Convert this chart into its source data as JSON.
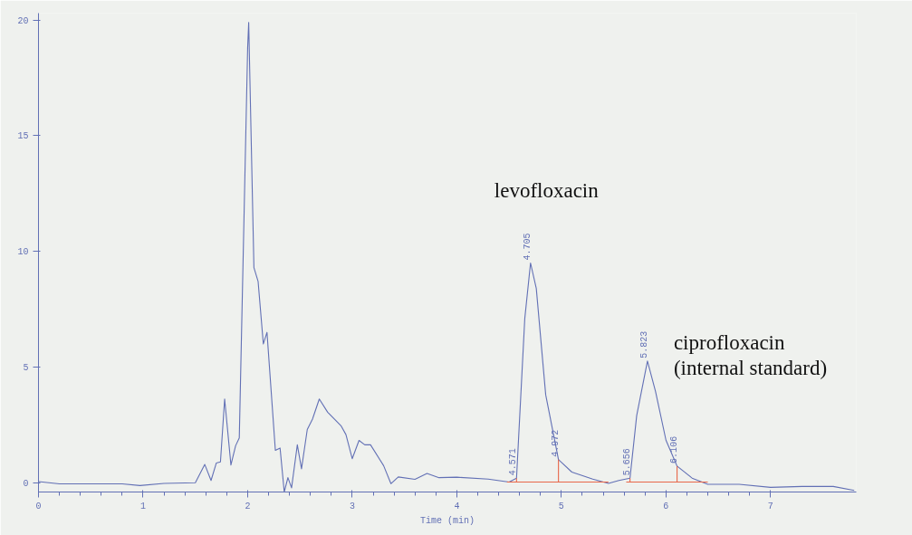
{
  "chart_data": {
    "type": "line",
    "xlabel": "Time (min)",
    "xlim": [
      0,
      7.82
    ],
    "ylim": [
      -0.4,
      20.3
    ],
    "xticks": [
      0,
      1,
      2,
      3,
      4,
      5,
      6,
      7
    ],
    "yticks": [
      0,
      5,
      10,
      15,
      20
    ],
    "grid": false,
    "marker": "none",
    "line_style": "solid",
    "series": [
      {
        "color": "#6270b5",
        "x": [
          0,
          0.2,
          0.5,
          0.8,
          0.97,
          1.2,
          1.5,
          1.59,
          1.65,
          1.7,
          1.74,
          1.78,
          1.84,
          1.885,
          1.92,
          2.0,
          2.01,
          2.06,
          2.1,
          2.15,
          2.185,
          2.265,
          2.31,
          2.35,
          2.385,
          2.42,
          2.475,
          2.515,
          2.57,
          2.62,
          2.685,
          2.765,
          2.895,
          2.94,
          3.0,
          3.065,
          3.12,
          3.175,
          3.3,
          3.37,
          3.44,
          3.6,
          3.715,
          3.83,
          4.0,
          4.3,
          4.5,
          4.571,
          4.65,
          4.705,
          4.76,
          4.85,
          4.972,
          5.1,
          5.3,
          5.45,
          5.55,
          5.656,
          5.72,
          5.823,
          5.9,
          6.0,
          6.106,
          6.25,
          6.4,
          6.7,
          7.0,
          7.3,
          7.6,
          7.8
        ],
        "values": [
          0.05,
          -0.05,
          -0.05,
          -0.05,
          -0.12,
          -0.03,
          0.0,
          0.79,
          0.1,
          0.85,
          0.9,
          3.62,
          0.77,
          1.6,
          1.94,
          18.8,
          19.9,
          9.3,
          8.7,
          6.0,
          6.5,
          1.4,
          1.5,
          -0.4,
          0.22,
          -0.22,
          1.64,
          0.6,
          2.3,
          2.75,
          3.62,
          3.05,
          2.45,
          2.08,
          1.04,
          1.83,
          1.64,
          1.64,
          0.74,
          -0.04,
          0.25,
          0.15,
          0.4,
          0.22,
          0.24,
          0.16,
          0.03,
          0.2,
          7.1,
          9.5,
          8.4,
          3.8,
          1.0,
          0.46,
          0.16,
          -0.03,
          0.1,
          0.2,
          2.9,
          5.26,
          3.95,
          1.84,
          0.72,
          0.2,
          -0.07,
          -0.07,
          -0.2,
          -0.16,
          -0.16,
          -0.33
        ]
      },
      {
        "color": "#e8674a",
        "x": [
          4.48,
          5.45
        ],
        "values": [
          0.03,
          0.03
        ]
      },
      {
        "color": "#e8674a",
        "x": [
          5.62,
          6.4
        ],
        "values": [
          0.03,
          0.03
        ]
      },
      {
        "color": "#e8674a",
        "x": [
          4.571,
          4.571
        ],
        "values": [
          0.03,
          0.2
        ]
      },
      {
        "color": "#e8674a",
        "x": [
          4.972,
          4.972
        ],
        "values": [
          0.03,
          1.0
        ]
      },
      {
        "color": "#e8674a",
        "x": [
          5.656,
          5.656
        ],
        "values": [
          0.03,
          0.2
        ]
      },
      {
        "color": "#e8674a",
        "x": [
          6.106,
          6.106
        ],
        "values": [
          0.03,
          0.72
        ]
      }
    ],
    "annotations": [
      {
        "text": "4.571",
        "x": 4.571,
        "y": 0.2
      },
      {
        "text": "4.705",
        "x": 4.705,
        "y": 9.5
      },
      {
        "text": "4.972",
        "x": 4.972,
        "y": 1.0
      },
      {
        "text": "5.656",
        "x": 5.656,
        "y": 0.2
      },
      {
        "text": "5.823",
        "x": 5.823,
        "y": 5.26
      },
      {
        "text": "6.106",
        "x": 6.106,
        "y": 0.72
      },
      {
        "text": "levofloxacin",
        "x": 4.705,
        "y": 9.5
      },
      {
        "text": "ciprofloxacin\n(internal standard)",
        "x": 5.823,
        "y": 5.26
      }
    ]
  }
}
